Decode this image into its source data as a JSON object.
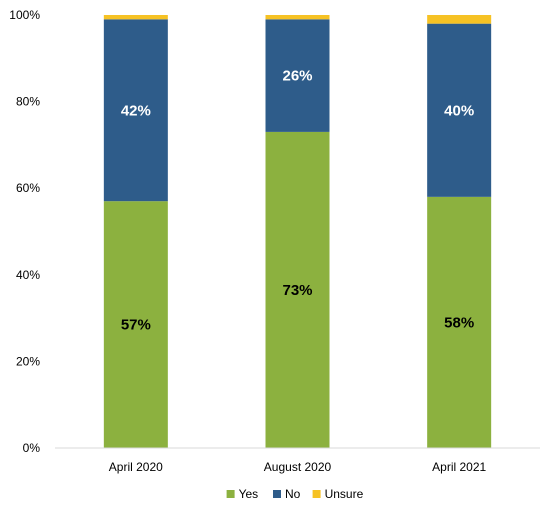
{
  "chart_data": {
    "type": "bar",
    "stacked": true,
    "categories": [
      "April 2020",
      "August 2020",
      "April 2021"
    ],
    "series": [
      {
        "name": "Yes",
        "values": [
          57,
          73,
          58
        ],
        "labels": [
          "57%",
          "73%",
          "58%"
        ],
        "color": "#8cb13f",
        "label_color": "#000000"
      },
      {
        "name": "No",
        "values": [
          42,
          26,
          40
        ],
        "labels": [
          "42%",
          "26%",
          "40%"
        ],
        "color": "#2e5c8a",
        "label_color": "#ffffff"
      },
      {
        "name": "Unsure",
        "values": [
          1,
          1,
          2
        ],
        "labels": [
          "",
          "",
          ""
        ],
        "color": "#f6c224",
        "label_color": "#000000"
      }
    ],
    "ylim": [
      0,
      100
    ],
    "yticks": [
      0,
      20,
      40,
      60,
      80,
      100
    ],
    "ytick_labels": [
      "0%",
      "20%",
      "40%",
      "60%",
      "80%",
      "100%"
    ],
    "title": "",
    "xlabel": "",
    "ylabel": "",
    "grid": false,
    "legend_position": "bottom"
  }
}
